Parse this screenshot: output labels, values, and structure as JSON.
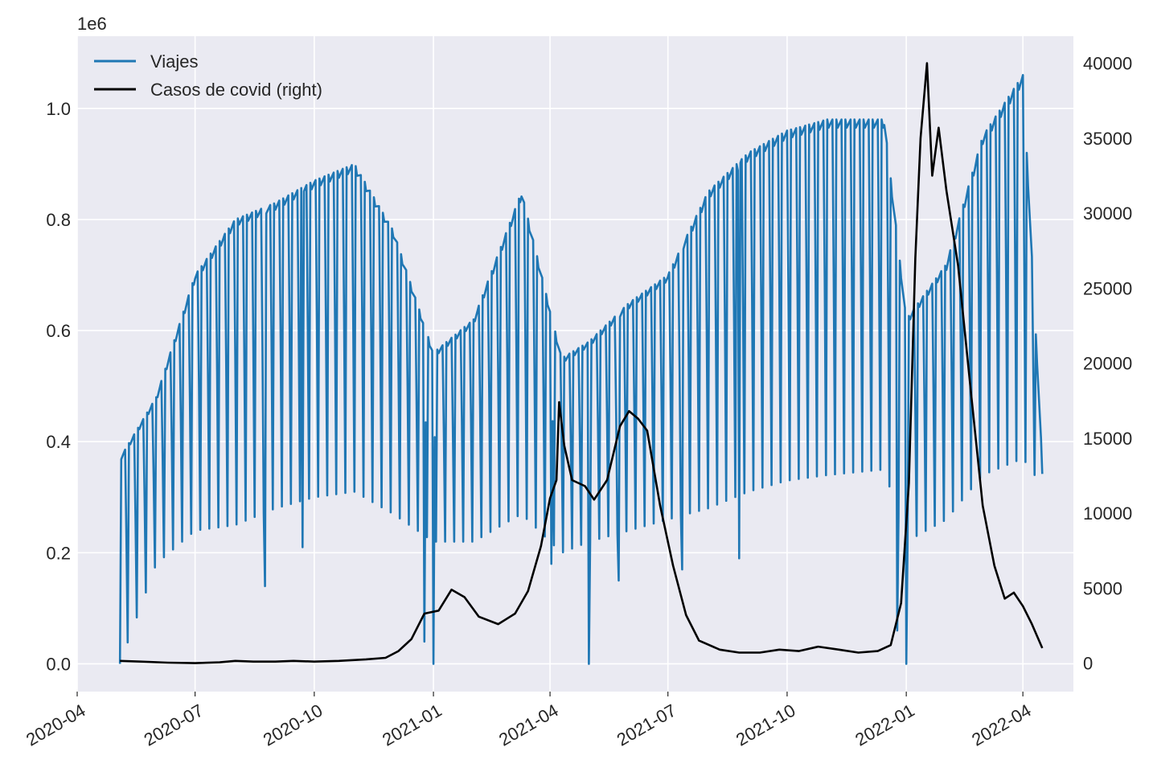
{
  "chart_data": {
    "type": "line",
    "x_axis": {
      "type": "date",
      "range": [
        "2020-04-01",
        "2022-05-10"
      ],
      "ticks": [
        "2020-04-01",
        "2020-07-01",
        "2020-10-01",
        "2021-01-01",
        "2021-04-01",
        "2021-07-01",
        "2021-10-01",
        "2022-01-01",
        "2022-04-01"
      ],
      "tick_labels": [
        "2020-04",
        "2020-07",
        "2020-10",
        "2021-01",
        "2021-04",
        "2021-07",
        "2021-10",
        "2022-01",
        "2022-04"
      ]
    },
    "y_left": {
      "range": [
        -0.05,
        1.13
      ],
      "ticks": [
        0.0,
        0.2,
        0.4,
        0.6,
        0.8,
        1.0
      ],
      "tick_labels": [
        "0.0",
        "0.2",
        "0.4",
        "0.6",
        "0.8",
        "1.0"
      ],
      "offset_text": "1e6"
    },
    "y_right": {
      "range": [
        -1900,
        41800
      ],
      "ticks": [
        0,
        5000,
        10000,
        15000,
        20000,
        25000,
        30000,
        35000,
        40000
      ],
      "tick_labels": [
        "0",
        "5000",
        "10000",
        "15000",
        "20000",
        "25000",
        "30000",
        "35000",
        "40000"
      ]
    },
    "grid": true,
    "legend": {
      "placement": "upper-left",
      "entries": [
        "Viajes",
        "Casos de covid (right)"
      ]
    },
    "series": [
      {
        "name": "Viajes",
        "axis": "left",
        "color": "#1f77b4",
        "unit": "1e6",
        "start_date": "2020-05-04",
        "end_date": "2022-04-16",
        "weekly_profile": [
          [
            "2020-05-04",
            0.37,
            0.0
          ],
          [
            "2020-06-01",
            0.48,
            0.18
          ],
          [
            "2020-07-01",
            0.7,
            0.24
          ],
          [
            "2020-08-01",
            0.8,
            0.25
          ],
          [
            "2020-09-01",
            0.83,
            0.28
          ],
          [
            "2020-10-01",
            0.87,
            0.3
          ],
          [
            "2020-11-01",
            0.9,
            0.31
          ],
          [
            "2020-12-01",
            0.78,
            0.27
          ],
          [
            "2021-01-01",
            0.56,
            0.22
          ],
          [
            "2021-02-01",
            0.62,
            0.22
          ],
          [
            "2021-03-10",
            0.85,
            0.27
          ],
          [
            "2021-04-10",
            0.55,
            0.2
          ],
          [
            "2021-05-01",
            0.58,
            0.22
          ],
          [
            "2021-06-01",
            0.65,
            0.24
          ],
          [
            "2021-07-01",
            0.7,
            0.26
          ],
          [
            "2021-08-01",
            0.85,
            0.28
          ],
          [
            "2021-09-01",
            0.92,
            0.31
          ],
          [
            "2021-10-01",
            0.96,
            0.33
          ],
          [
            "2021-11-01",
            0.98,
            0.34
          ],
          [
            "2021-12-15",
            0.98,
            0.35
          ],
          [
            "2022-01-01",
            0.62,
            0.22
          ],
          [
            "2022-02-01",
            0.72,
            0.26
          ],
          [
            "2022-03-01",
            0.95,
            0.34
          ],
          [
            "2022-04-01",
            1.06,
            0.37
          ],
          [
            "2022-04-16",
            0.36,
            0.32
          ]
        ],
        "dips": [
          [
            "2020-05-04",
            0.0
          ],
          [
            "2020-08-24",
            0.14
          ],
          [
            "2020-09-22",
            0.21
          ],
          [
            "2020-12-25",
            0.04
          ],
          [
            "2021-01-01",
            0.0
          ],
          [
            "2021-04-02",
            0.18
          ],
          [
            "2021-05-01",
            0.0
          ],
          [
            "2021-05-24",
            0.15
          ],
          [
            "2021-07-12",
            0.17
          ],
          [
            "2021-08-25",
            0.19
          ],
          [
            "2021-12-25",
            0.06
          ],
          [
            "2022-01-01",
            0.0
          ]
        ]
      },
      {
        "name": "Casos de covid (right)",
        "axis": "right",
        "color": "#000000",
        "points": [
          [
            "2020-05-04",
            150
          ],
          [
            "2020-05-20",
            100
          ],
          [
            "2020-06-10",
            30
          ],
          [
            "2020-07-01",
            0
          ],
          [
            "2020-07-20",
            50
          ],
          [
            "2020-08-01",
            150
          ],
          [
            "2020-08-15",
            100
          ],
          [
            "2020-09-01",
            100
          ],
          [
            "2020-09-15",
            150
          ],
          [
            "2020-10-01",
            100
          ],
          [
            "2020-10-20",
            150
          ],
          [
            "2020-11-10",
            250
          ],
          [
            "2020-11-25",
            350
          ],
          [
            "2020-12-05",
            800
          ],
          [
            "2020-12-15",
            1600
          ],
          [
            "2020-12-25",
            3300
          ],
          [
            "2021-01-05",
            3500
          ],
          [
            "2021-01-15",
            4900
          ],
          [
            "2021-01-25",
            4400
          ],
          [
            "2021-02-05",
            3100
          ],
          [
            "2021-02-20",
            2600
          ],
          [
            "2021-03-05",
            3300
          ],
          [
            "2021-03-15",
            4800
          ],
          [
            "2021-03-25",
            7800
          ],
          [
            "2021-04-01",
            11000
          ],
          [
            "2021-04-06",
            12200
          ],
          [
            "2021-04-08",
            17400
          ],
          [
            "2021-04-12",
            14500
          ],
          [
            "2021-04-18",
            12200
          ],
          [
            "2021-04-28",
            11800
          ],
          [
            "2021-05-05",
            10900
          ],
          [
            "2021-05-15",
            12200
          ],
          [
            "2021-05-25",
            15800
          ],
          [
            "2021-06-01",
            16800
          ],
          [
            "2021-06-08",
            16300
          ],
          [
            "2021-06-15",
            15500
          ],
          [
            "2021-06-25",
            10500
          ],
          [
            "2021-07-05",
            6500
          ],
          [
            "2021-07-15",
            3200
          ],
          [
            "2021-07-25",
            1500
          ],
          [
            "2021-08-10",
            900
          ],
          [
            "2021-08-25",
            700
          ],
          [
            "2021-09-10",
            700
          ],
          [
            "2021-09-25",
            900
          ],
          [
            "2021-10-10",
            800
          ],
          [
            "2021-10-25",
            1100
          ],
          [
            "2021-11-10",
            900
          ],
          [
            "2021-11-25",
            700
          ],
          [
            "2021-12-10",
            800
          ],
          [
            "2021-12-20",
            1200
          ],
          [
            "2021-12-28",
            4000
          ],
          [
            "2022-01-03",
            12000
          ],
          [
            "2022-01-08",
            27000
          ],
          [
            "2022-01-12",
            35000
          ],
          [
            "2022-01-17",
            40000
          ],
          [
            "2022-01-21",
            32500
          ],
          [
            "2022-01-26",
            35700
          ],
          [
            "2022-02-01",
            31500
          ],
          [
            "2022-02-10",
            26500
          ],
          [
            "2022-02-20",
            18000
          ],
          [
            "2022-03-01",
            10500
          ],
          [
            "2022-03-10",
            6500
          ],
          [
            "2022-03-18",
            4300
          ],
          [
            "2022-03-25",
            4700
          ],
          [
            "2022-04-01",
            3800
          ],
          [
            "2022-04-08",
            2600
          ],
          [
            "2022-04-16",
            1000
          ]
        ]
      }
    ]
  }
}
